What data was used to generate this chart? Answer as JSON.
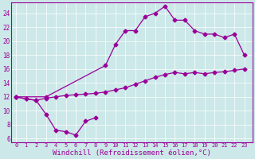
{
  "bg_color": "#cce8e8",
  "line_color": "#990099",
  "marker": "D",
  "markersize": 2.5,
  "linewidth": 0.9,
  "xlabel": "Windchill (Refroidissement éolien,°C)",
  "xlabel_fontsize": 6.5,
  "ylabel_ticks": [
    6,
    8,
    10,
    12,
    14,
    16,
    18,
    20,
    22,
    24
  ],
  "xlabel_ticks": [
    0,
    1,
    2,
    3,
    4,
    5,
    6,
    7,
    8,
    9,
    10,
    11,
    12,
    13,
    14,
    15,
    16,
    17,
    18,
    19,
    20,
    21,
    22,
    23
  ],
  "xlim": [
    -0.5,
    23.8
  ],
  "ylim": [
    5.5,
    25.5
  ],
  "series1_x": [
    0,
    1,
    2,
    3,
    4,
    5,
    6,
    7,
    8
  ],
  "series1_y": [
    12,
    11.7,
    11.5,
    9.5,
    7.2,
    7.0,
    6.5,
    8.5,
    9.0
  ],
  "series2_x": [
    0,
    1,
    2,
    3,
    4,
    5,
    6,
    7,
    8,
    9,
    10,
    11,
    12,
    13,
    14,
    15,
    16,
    17,
    18,
    19,
    20,
    21,
    22,
    23
  ],
  "series2_y": [
    12,
    11.7,
    11.5,
    11.8,
    12.0,
    12.2,
    12.3,
    12.4,
    12.5,
    12.7,
    13.0,
    13.3,
    13.8,
    14.3,
    14.8,
    15.2,
    15.5,
    15.3,
    15.5,
    15.3,
    15.5,
    15.6,
    15.8,
    16.0
  ],
  "series3_x": [
    0,
    3,
    9,
    10,
    11,
    12,
    13,
    14,
    15,
    16,
    17,
    18,
    19,
    20,
    21,
    22,
    23
  ],
  "series3_y": [
    12,
    12.0,
    16.5,
    19.5,
    21.5,
    21.5,
    23.5,
    24.0,
    25.0,
    23.0,
    23.0,
    21.5,
    21.0,
    21.0,
    20.5,
    21.0,
    18.0
  ]
}
